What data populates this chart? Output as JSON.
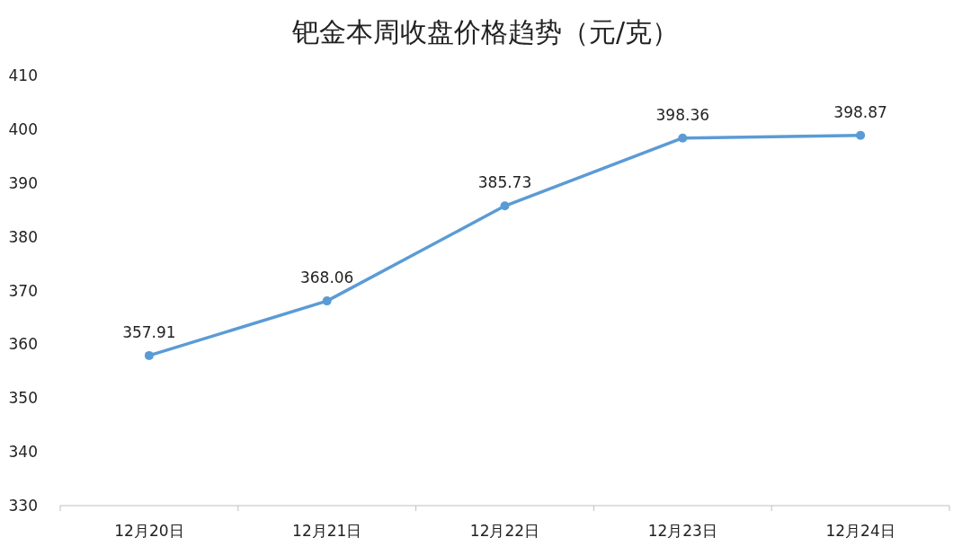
{
  "chart_data": {
    "type": "line",
    "title": "钯金本周收盘价格趋势（元/克）",
    "categories": [
      "12月20日",
      "12月21日",
      "12月22日",
      "12月23日",
      "12月24日"
    ],
    "series": [
      {
        "color": "#5b9bd5",
        "values": [
          357.91,
          368.06,
          385.73,
          398.36,
          398.87
        ]
      }
    ],
    "ylim": [
      330,
      410
    ],
    "yticks": [
      330,
      340,
      350,
      360,
      370,
      380,
      390,
      400,
      410
    ],
    "data_labels": true,
    "marker": "circle",
    "line_style": "solid",
    "grid": false
  }
}
